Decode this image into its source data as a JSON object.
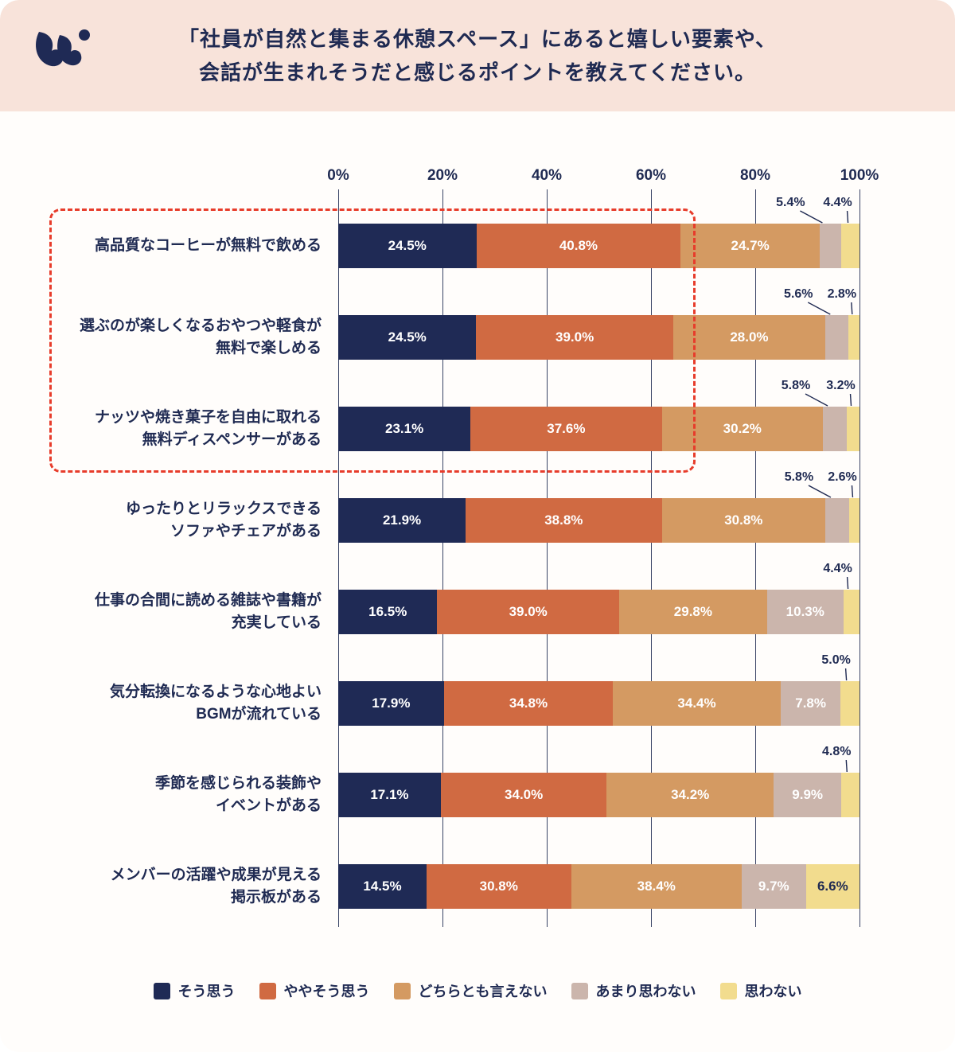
{
  "header": {
    "title_line1": "「社員が自然と集まる休憩スペース」にあると嬉しい要素や、",
    "title_line2": "会話が生まれそうだと感じるポイントを教えてください。",
    "background": "#f8e3da",
    "title_color": "#1f2a52"
  },
  "chart_data": {
    "type": "bar",
    "orientation": "horizontal",
    "stacked": true,
    "xlim": [
      0,
      100
    ],
    "x_ticks": [
      "0%",
      "20%",
      "40%",
      "60%",
      "80%",
      "100%"
    ],
    "grid": true,
    "series_names": [
      "そう思う",
      "ややそう思う",
      "どちらとも言えない",
      "あまり思わない",
      "思わない"
    ],
    "series_colors": [
      "#1f2a55",
      "#d06a42",
      "#d49a62",
      "#cbb5ac",
      "#f2dc8e"
    ],
    "highlight_rows": [
      0,
      1,
      2
    ],
    "highlight_color": "#e73c2b",
    "rows": [
      {
        "label_lines": [
          "高品質なコーヒーが無料で飲める"
        ],
        "values": [
          24.5,
          40.8,
          24.7,
          5.4,
          4.4
        ],
        "labels": [
          "24.5%",
          "40.8%",
          "24.7%",
          "5.4%",
          "4.4%"
        ],
        "display": [
          "in",
          "in",
          "in",
          "call",
          "call"
        ]
      },
      {
        "label_lines": [
          "選ぶのが楽しくなるおやつや軽食が",
          "無料で楽しめる"
        ],
        "values": [
          24.5,
          39.0,
          28.0,
          5.6,
          2.8
        ],
        "labels": [
          "24.5%",
          "39.0%",
          "28.0%",
          "5.6%",
          "2.8%"
        ],
        "display": [
          "in",
          "in",
          "in",
          "call",
          "call"
        ]
      },
      {
        "label_lines": [
          "ナッツや焼き菓子を自由に取れる",
          "無料ディスペンサーがある"
        ],
        "values": [
          23.1,
          37.6,
          30.2,
          5.8,
          3.2
        ],
        "labels": [
          "23.1%",
          "37.6%",
          "30.2%",
          "5.8%",
          "3.2%"
        ],
        "display": [
          "in",
          "in",
          "in",
          "call",
          "call"
        ]
      },
      {
        "label_lines": [
          "ゆったりとリラックスできる",
          "ソファやチェアがある"
        ],
        "values": [
          21.9,
          38.8,
          30.8,
          5.8,
          2.6
        ],
        "labels": [
          "21.9%",
          "38.8%",
          "30.8%",
          "5.8%",
          "2.6%"
        ],
        "display": [
          "in",
          "in",
          "in",
          "call",
          "call"
        ]
      },
      {
        "label_lines": [
          "仕事の合間に読める雑誌や書籍が",
          "充実している"
        ],
        "values": [
          16.5,
          39.0,
          29.8,
          10.3,
          4.4
        ],
        "labels": [
          "16.5%",
          "39.0%",
          "29.8%",
          "10.3%",
          "4.4%"
        ],
        "display": [
          "in",
          "in",
          "in",
          "in",
          "call"
        ]
      },
      {
        "label_lines": [
          "気分転換になるような心地よい",
          "BGMが流れている"
        ],
        "values": [
          17.9,
          34.8,
          34.4,
          7.8,
          5.0
        ],
        "labels": [
          "17.9%",
          "34.8%",
          "34.4%",
          "7.8%",
          "5.0%"
        ],
        "display": [
          "in",
          "in",
          "in",
          "in",
          "call"
        ]
      },
      {
        "label_lines": [
          "季節を感じられる装飾や",
          "イベントがある"
        ],
        "values": [
          17.1,
          34.0,
          34.2,
          9.9,
          4.8
        ],
        "labels": [
          "17.1%",
          "34.0%",
          "34.2%",
          "9.9%",
          "4.8%"
        ],
        "display": [
          "in",
          "in",
          "in",
          "in",
          "call"
        ]
      },
      {
        "label_lines": [
          "メンバーの活躍や成果が見える",
          "掲示板がある"
        ],
        "values": [
          14.5,
          30.8,
          38.4,
          9.7,
          6.6
        ],
        "labels": [
          "14.5%",
          "30.8%",
          "38.4%",
          "9.7%",
          "6.6%"
        ],
        "display": [
          "in",
          "in",
          "in",
          "in",
          "in_dark"
        ]
      }
    ]
  },
  "legend": {
    "items": [
      "そう思う",
      "ややそう思う",
      "どちらとも言えない",
      "あまり思わない",
      "思わない"
    ]
  }
}
